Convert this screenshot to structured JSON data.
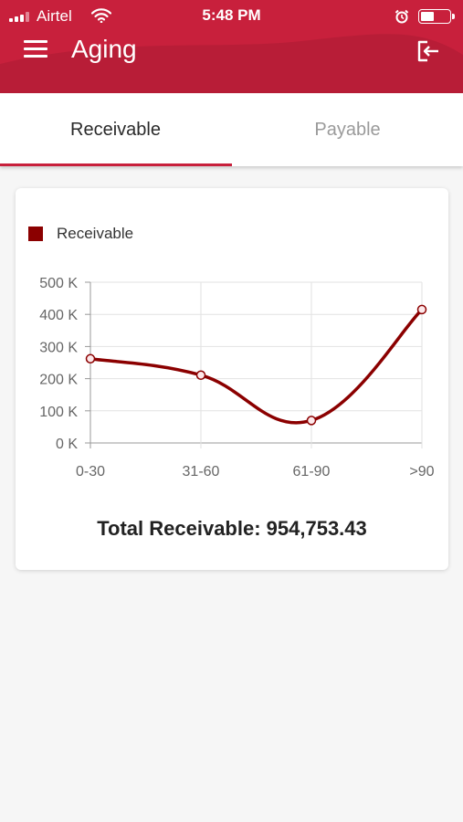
{
  "status_bar": {
    "carrier": "Airtel",
    "time": "5:48 PM",
    "signal_bars": 4,
    "signal_bars_active": 3,
    "battery_level": 0.45
  },
  "header": {
    "title": "Aging",
    "menu_icon": "hamburger-menu-icon",
    "logout_icon": "logout-icon",
    "color": "#c8203c"
  },
  "tabs": [
    {
      "label": "Receivable",
      "active": true
    },
    {
      "label": "Payable",
      "active": false
    }
  ],
  "chart_data": {
    "type": "line",
    "x": [
      "0-30",
      "31-60",
      "61-90",
      ">90"
    ],
    "y_ticks": [
      "0 K",
      "100 K",
      "200 K",
      "300 K",
      "400 K",
      "500 K"
    ],
    "ylim": [
      0,
      500000
    ],
    "grid": true,
    "legend_position": "top-left",
    "series": [
      {
        "name": "Receivable",
        "color": "#8b0000",
        "values": [
          262000,
          211000,
          70000,
          415000
        ]
      }
    ]
  },
  "summary": {
    "total_label": "Total Receivable: 954,753.43"
  }
}
